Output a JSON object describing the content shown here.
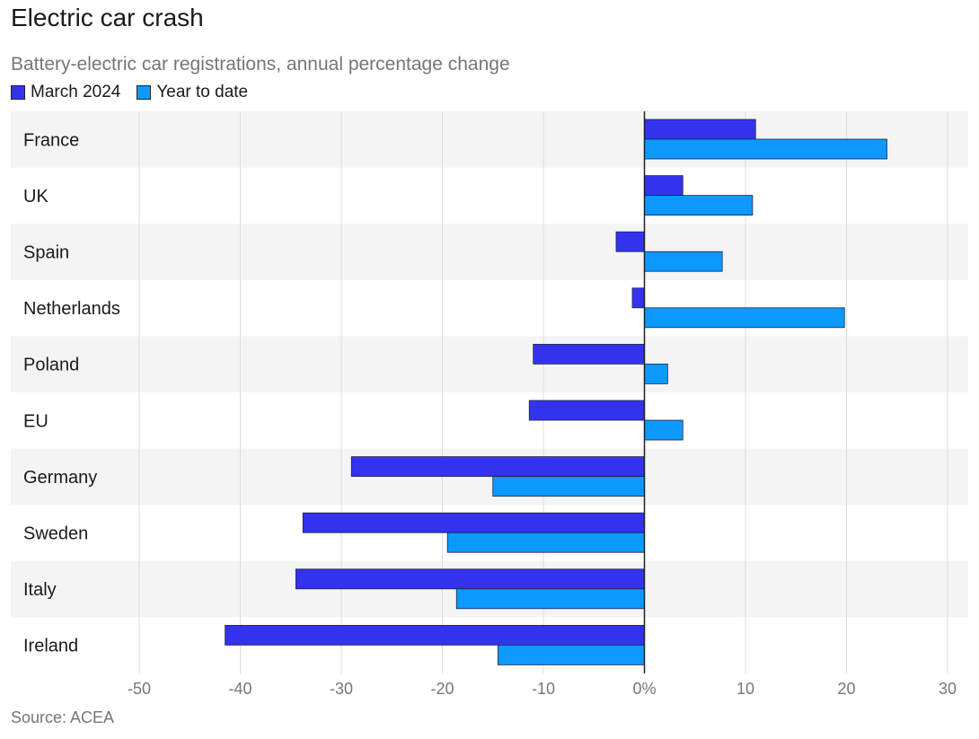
{
  "title": "Electric car crash",
  "subtitle": "Battery-electric car registrations, annual percentage change",
  "source": "Source: ACEA",
  "colors": {
    "march": "#3333ee",
    "ytd": "#0d99ff",
    "band": "#f4f4f4",
    "grid": "#dddddd",
    "zero": "#222222"
  },
  "chart_data": {
    "type": "bar",
    "orientation": "horizontal",
    "categories": [
      "France",
      "UK",
      "Spain",
      "Netherlands",
      "Poland",
      "EU",
      "Germany",
      "Sweden",
      "Italy",
      "Ireland"
    ],
    "series": [
      {
        "name": "March 2024",
        "values": [
          11,
          3.8,
          -2.8,
          -1.2,
          -11,
          -11.4,
          -29,
          -33.8,
          -34.5,
          -41.5
        ]
      },
      {
        "name": "Year to date",
        "values": [
          24,
          10.7,
          7.7,
          19.8,
          2.3,
          3.8,
          -15,
          -19.5,
          -18.6,
          -14.5
        ]
      }
    ],
    "xlim": [
      -50,
      30
    ],
    "xticks": [
      -50,
      -40,
      -30,
      -20,
      -10,
      0,
      10,
      20,
      30
    ],
    "xtick_labels": [
      "-50",
      "-40",
      "-30",
      "-20",
      "-10",
      "0%",
      "10",
      "20",
      "30"
    ],
    "grid": true,
    "legend": "top-left"
  }
}
